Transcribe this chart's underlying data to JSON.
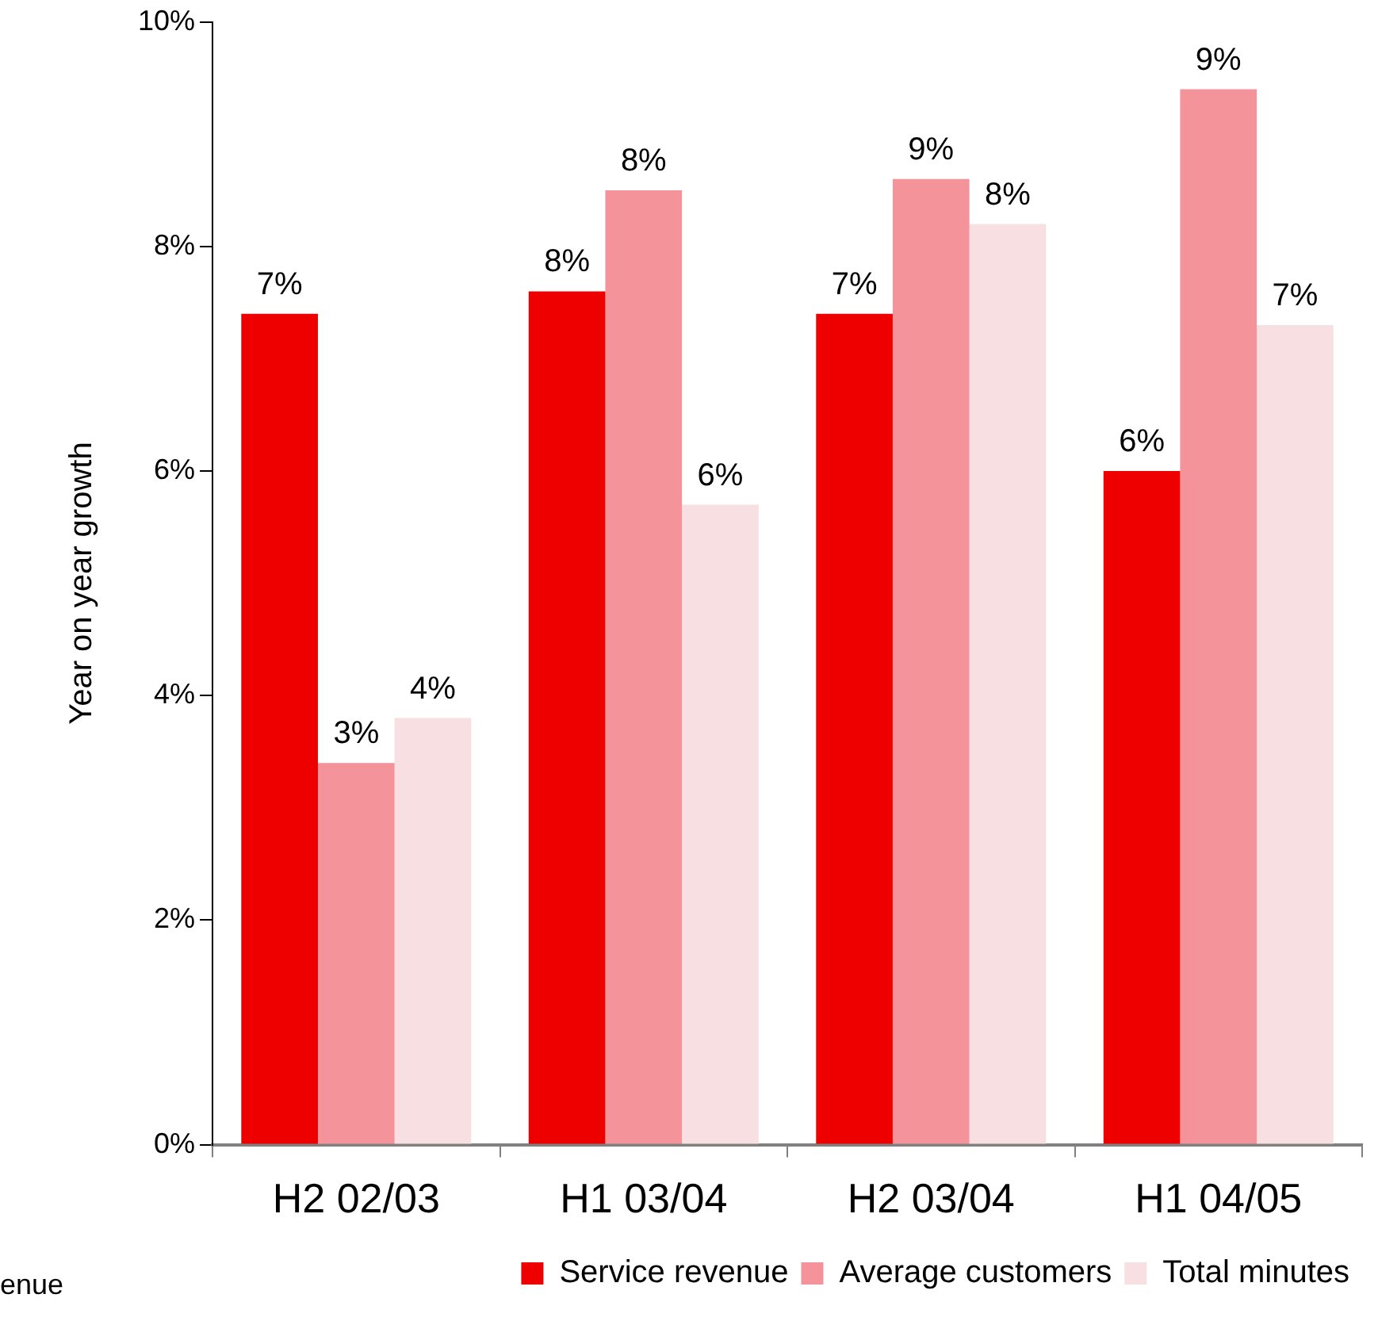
{
  "chart_data": {
    "type": "bar",
    "ylabel": "Year on year growth",
    "categories": [
      "H2 02/03",
      "H1 03/04",
      "H2 03/04",
      "H1 04/05"
    ],
    "series": [
      {
        "name": "Service revenue",
        "color": "#ee0000",
        "values": [
          7.4,
          7.6,
          7.4,
          6.0
        ],
        "value_labels": [
          "7%",
          "8%",
          "7%",
          "6%"
        ]
      },
      {
        "name": "Average customers",
        "color": "#f4939a",
        "values": [
          3.4,
          8.5,
          8.6,
          9.4
        ],
        "value_labels": [
          "3%",
          "8%",
          "9%",
          "9%"
        ]
      },
      {
        "name": "Total minutes",
        "color": "#f8dfe1",
        "values": [
          3.8,
          5.7,
          8.2,
          7.3
        ],
        "value_labels": [
          "4%",
          "6%",
          "8%",
          "7%"
        ]
      }
    ],
    "ylim": [
      0,
      10
    ],
    "yticks": [
      {
        "value": 0,
        "label": "0%"
      },
      {
        "value": 2,
        "label": "2%"
      },
      {
        "value": 4,
        "label": "4%"
      },
      {
        "value": 6,
        "label": "6%"
      },
      {
        "value": 8,
        "label": "8%"
      },
      {
        "value": 10,
        "label": "10%"
      }
    ],
    "grid": false,
    "legend": "bottom right",
    "annotations": [
      "enue"
    ]
  }
}
